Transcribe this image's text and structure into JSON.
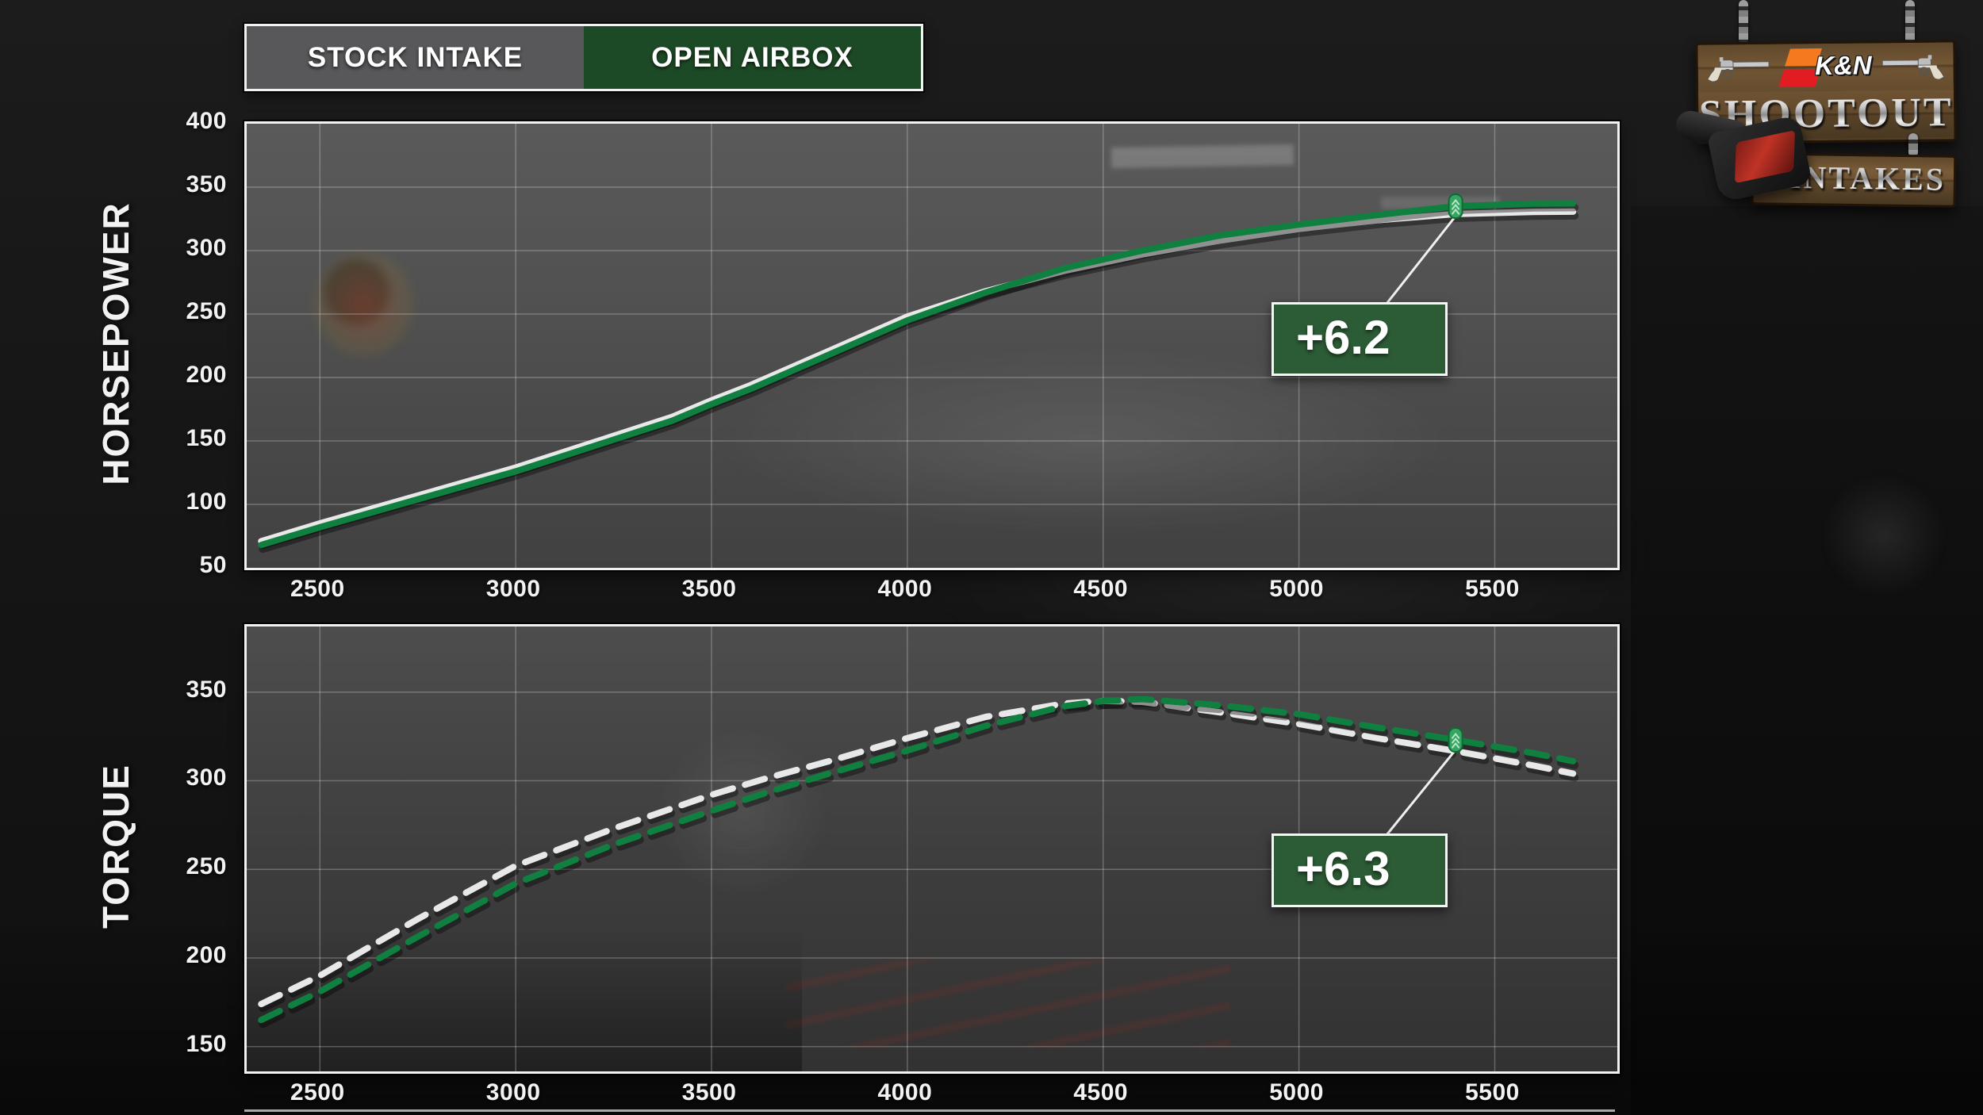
{
  "toggle": {
    "stock_label": "STOCK INTAKE",
    "open_label": "OPEN AIRBOX"
  },
  "logo": {
    "kn": "K&N",
    "shootout": "SHOOTOUT",
    "intakes": "INTAKES"
  },
  "colors": {
    "open_airbox_line": "#0f8040",
    "stock_line": "#e8e8e8",
    "callout_bg": "#2c5c35",
    "toggle_green": "#1d4a26",
    "toggle_gray": "#58585a",
    "marker_fill": "#37a463",
    "marker_stroke": "#0c6b32",
    "marker_chevron": "#b9e6c8",
    "gridline": "rgba(255,255,255,0.25)"
  },
  "chart_data": [
    {
      "type": "line",
      "id": "horsepower",
      "ylabel": "HORSEPOWER",
      "xlabel": "",
      "y_ticks": [
        50,
        100,
        150,
        200,
        250,
        300,
        350,
        400
      ],
      "x_ticks": [
        2500,
        3000,
        3500,
        4000,
        4500,
        5000,
        5500
      ],
      "x_range": [
        2313,
        5813
      ],
      "y_range": [
        50,
        400
      ],
      "grid": true,
      "x": [
        2350,
        2500,
        2750,
        3000,
        3200,
        3400,
        3500,
        3600,
        3800,
        4000,
        4200,
        4400,
        4600,
        4800,
        5000,
        5200,
        5400,
        5600,
        5700
      ],
      "series": [
        {
          "name": "STOCK INTAKE",
          "color": "#e8e8e8",
          "dashed": false,
          "values": [
            71,
            85,
            107,
            129,
            149,
            169,
            182,
            194,
            221,
            248,
            268,
            284,
            297,
            308,
            317,
            324,
            328.8,
            330.5,
            330.7
          ]
        },
        {
          "name": "OPEN AIRBOX",
          "color": "#0f8040",
          "dashed": false,
          "values": [
            68,
            82,
            104,
            126,
            146,
            166,
            179,
            191,
            218,
            245,
            267,
            286,
            300,
            312,
            320.5,
            328,
            335,
            337,
            337.2
          ]
        }
      ],
      "annotation": {
        "label": "+6.2",
        "rpm": 5400,
        "series": "OPEN AIRBOX",
        "value": 335
      }
    },
    {
      "type": "line",
      "id": "torque",
      "ylabel": "TORQUE",
      "xlabel": "",
      "y_ticks": [
        150,
        200,
        250,
        300,
        350
      ],
      "x_ticks": [
        2500,
        3000,
        3500,
        4000,
        4500,
        5000,
        5500
      ],
      "x_range": [
        2313,
        5813
      ],
      "y_range": [
        136,
        387
      ],
      "grid": true,
      "x": [
        2350,
        2500,
        2750,
        3000,
        3250,
        3500,
        3650,
        3800,
        4000,
        4200,
        4400,
        4500,
        4600,
        4800,
        5000,
        5200,
        5400,
        5600,
        5700
      ],
      "series": [
        {
          "name": "STOCK INTAKE",
          "color": "#e8e8e8",
          "dashed": true,
          "values": [
            174,
            190,
            222,
            252,
            273,
            292,
            302,
            311,
            324,
            336,
            343.5,
            345,
            344.5,
            338.5,
            332,
            324,
            316.7,
            308.5,
            304
          ]
        },
        {
          "name": "OPEN AIRBOX",
          "color": "#0f8040",
          "dashed": true,
          "values": [
            165,
            181,
            212,
            242,
            264,
            283,
            294,
            304,
            317,
            331,
            342,
            345,
            346,
            342.5,
            337.5,
            330,
            323,
            315.5,
            311
          ]
        }
      ],
      "annotation": {
        "label": "+6.3",
        "rpm": 5400,
        "series": "OPEN AIRBOX",
        "value": 323
      }
    }
  ]
}
